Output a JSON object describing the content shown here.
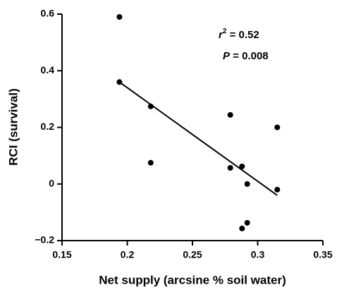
{
  "chart_data": {
    "type": "scatter",
    "x_label": "Net supply (arcsine % soil water)",
    "y_label": "RCI (survival)",
    "x": [
      0.194,
      0.194,
      0.218,
      0.218,
      0.279,
      0.279,
      0.288,
      0.292,
      0.292,
      0.288,
      0.315,
      0.315
    ],
    "values": [
      0.59,
      0.36,
      0.274,
      0.075,
      0.244,
      0.057,
      0.062,
      0.0,
      -0.137,
      -0.157,
      0.2,
      -0.02
    ],
    "color": "#000000",
    "fit_line": {
      "x": [
        0.194,
        0.315
      ],
      "y": [
        0.36,
        -0.04
      ]
    },
    "annotations": [
      {
        "symbol": "r",
        "sup": "2",
        "text": " = 0.52"
      },
      {
        "symbol": "P",
        "text": " = 0.008"
      }
    ],
    "xlim": [
      0.15,
      0.35
    ],
    "xticks": [
      0.15,
      0.2,
      0.25,
      0.3,
      0.35
    ],
    "ylim": [
      -0.2,
      0.6
    ],
    "yticks": [
      {
        "value": -0.2,
        "label": "−0.2"
      },
      0,
      0.2,
      0.4,
      0.6
    ]
  }
}
